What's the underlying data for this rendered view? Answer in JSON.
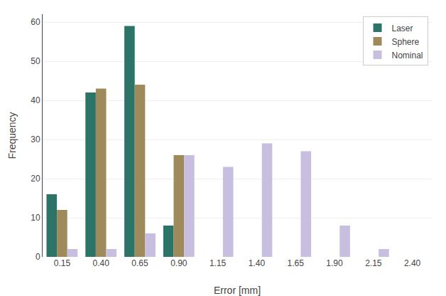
{
  "chart_data": {
    "type": "bar",
    "xlabel": "Error [mm]",
    "ylabel": "Frequency",
    "categories": [
      "0.15",
      "0.40",
      "0.65",
      "0.90",
      "1.15",
      "1.40",
      "1.65",
      "1.90",
      "2.15",
      "2.40"
    ],
    "series": [
      {
        "name": "Laser",
        "color": "#2d7468",
        "values": [
          16,
          42,
          59,
          8,
          null,
          null,
          null,
          null,
          null,
          null
        ]
      },
      {
        "name": "Sphere",
        "color": "#9e8a5a",
        "values": [
          12,
          43,
          44,
          26,
          null,
          null,
          null,
          null,
          null,
          null
        ]
      },
      {
        "name": "Nominal",
        "color": "#c8bfe0",
        "values": [
          2,
          2,
          6,
          26,
          23,
          29,
          27,
          8,
          2,
          0
        ]
      }
    ],
    "ylim": [
      0,
      62
    ],
    "yticks": [
      0,
      10,
      20,
      30,
      40,
      50,
      60
    ],
    "grid": true,
    "legend": "upper right"
  }
}
